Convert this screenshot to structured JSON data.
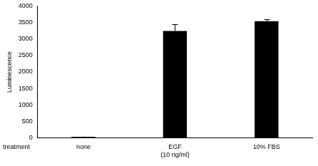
{
  "chart_data": {
    "type": "bar",
    "categories": [
      "none",
      "EGF\n(10 ng/ml)",
      "10% FBS"
    ],
    "values": [
      30,
      3240,
      3540
    ],
    "errors": [
      10,
      210,
      50
    ],
    "color": "#000000",
    "y_label": "Luminescence",
    "x_label": "treatment",
    "ylim": [
      0,
      4000
    ],
    "yticks": [
      0,
      500,
      1000,
      1500,
      2000,
      2500,
      3000,
      3500,
      4000
    ],
    "grid": false
  }
}
